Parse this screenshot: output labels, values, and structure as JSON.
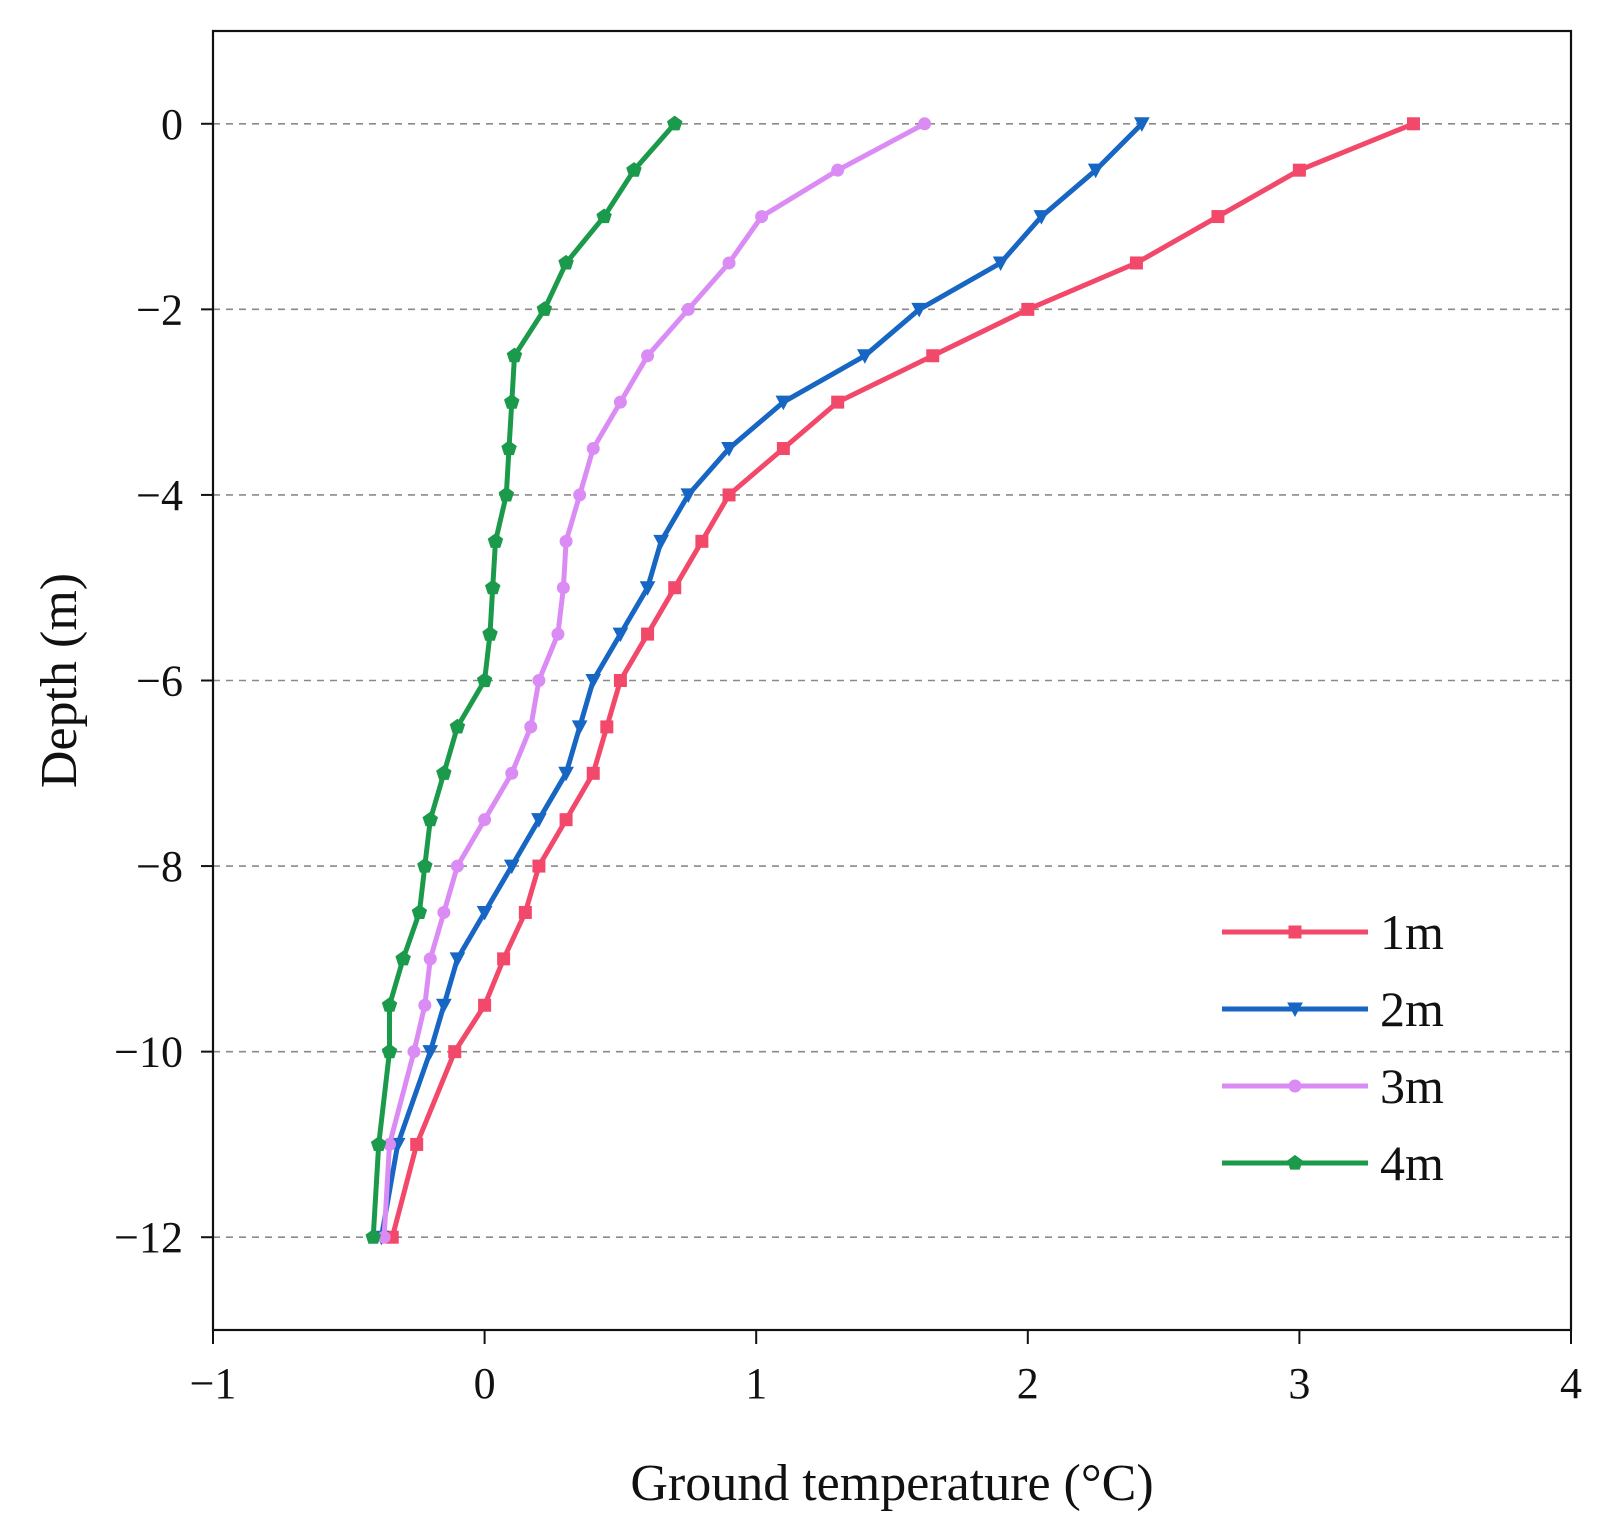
{
  "chart_data": {
    "type": "line",
    "title": "",
    "xlabel": "Ground temperature (°C)",
    "ylabel": "Depth (m)",
    "xlim": [
      -1,
      4
    ],
    "ylim": [
      -13,
      1
    ],
    "xticks": [
      -1,
      0,
      1,
      2,
      3,
      4
    ],
    "yticks": [
      0,
      -2,
      -4,
      -6,
      -8,
      -10,
      -12
    ],
    "xtick_labels": [
      "−1",
      "0",
      "1",
      "2",
      "3",
      "4"
    ],
    "ytick_labels": [
      "0",
      "−2",
      "−4",
      "−6",
      "−8",
      "−10",
      "−12"
    ],
    "grid": "horizontal dashed",
    "legend_position": "bottom-right",
    "series": [
      {
        "name": "1m",
        "color": "#f2496b",
        "marker": "square",
        "points": [
          [
            3.42,
            0
          ],
          [
            3.0,
            -0.5
          ],
          [
            2.7,
            -1
          ],
          [
            2.4,
            -1.5
          ],
          [
            2.0,
            -2
          ],
          [
            1.65,
            -2.5
          ],
          [
            1.3,
            -3
          ],
          [
            1.1,
            -3.5
          ],
          [
            0.9,
            -4
          ],
          [
            0.8,
            -4.5
          ],
          [
            0.7,
            -5
          ],
          [
            0.6,
            -5.5
          ],
          [
            0.5,
            -6
          ],
          [
            0.45,
            -6.5
          ],
          [
            0.4,
            -7
          ],
          [
            0.3,
            -7.5
          ],
          [
            0.2,
            -8
          ],
          [
            0.15,
            -8.5
          ],
          [
            0.07,
            -9
          ],
          [
            0.0,
            -9.5
          ],
          [
            -0.11,
            -10
          ],
          [
            -0.25,
            -11
          ],
          [
            -0.34,
            -12
          ]
        ]
      },
      {
        "name": "2m",
        "color": "#1766c4",
        "marker": "triangle-down",
        "points": [
          [
            2.42,
            0
          ],
          [
            2.25,
            -0.5
          ],
          [
            2.05,
            -1
          ],
          [
            1.9,
            -1.5
          ],
          [
            1.6,
            -2
          ],
          [
            1.4,
            -2.5
          ],
          [
            1.1,
            -3
          ],
          [
            0.9,
            -3.5
          ],
          [
            0.75,
            -4
          ],
          [
            0.65,
            -4.5
          ],
          [
            0.6,
            -5
          ],
          [
            0.5,
            -5.5
          ],
          [
            0.4,
            -6
          ],
          [
            0.35,
            -6.5
          ],
          [
            0.3,
            -7
          ],
          [
            0.2,
            -7.5
          ],
          [
            0.1,
            -8
          ],
          [
            0.0,
            -8.5
          ],
          [
            -0.1,
            -9
          ],
          [
            -0.15,
            -9.5
          ],
          [
            -0.2,
            -10
          ],
          [
            -0.32,
            -11
          ],
          [
            -0.38,
            -12
          ]
        ]
      },
      {
        "name": "3m",
        "color": "#db8cf4",
        "marker": "circle",
        "points": [
          [
            1.62,
            0
          ],
          [
            1.3,
            -0.5
          ],
          [
            1.02,
            -1
          ],
          [
            0.9,
            -1.5
          ],
          [
            0.75,
            -2
          ],
          [
            0.6,
            -2.5
          ],
          [
            0.5,
            -3
          ],
          [
            0.4,
            -3.5
          ],
          [
            0.35,
            -4
          ],
          [
            0.3,
            -4.5
          ],
          [
            0.29,
            -5
          ],
          [
            0.27,
            -5.5
          ],
          [
            0.2,
            -6
          ],
          [
            0.17,
            -6.5
          ],
          [
            0.1,
            -7
          ],
          [
            0.0,
            -7.5
          ],
          [
            -0.1,
            -8
          ],
          [
            -0.15,
            -8.5
          ],
          [
            -0.2,
            -9
          ],
          [
            -0.22,
            -9.5
          ],
          [
            -0.26,
            -10
          ],
          [
            -0.35,
            -11
          ],
          [
            -0.37,
            -12
          ]
        ]
      },
      {
        "name": "4m",
        "color": "#1b9a4b",
        "marker": "pentagon",
        "points": [
          [
            0.7,
            0
          ],
          [
            0.55,
            -0.5
          ],
          [
            0.44,
            -1
          ],
          [
            0.3,
            -1.5
          ],
          [
            0.22,
            -2
          ],
          [
            0.11,
            -2.5
          ],
          [
            0.1,
            -3
          ],
          [
            0.09,
            -3.5
          ],
          [
            0.08,
            -4
          ],
          [
            0.04,
            -4.5
          ],
          [
            0.03,
            -5
          ],
          [
            0.02,
            -5.5
          ],
          [
            0.0,
            -6
          ],
          [
            -0.1,
            -6.5
          ],
          [
            -0.15,
            -7
          ],
          [
            -0.2,
            -7.5
          ],
          [
            -0.22,
            -8
          ],
          [
            -0.24,
            -8.5
          ],
          [
            -0.3,
            -9
          ],
          [
            -0.35,
            -9.5
          ],
          [
            -0.35,
            -10
          ],
          [
            -0.39,
            -11
          ],
          [
            -0.41,
            -12
          ]
        ]
      }
    ]
  }
}
